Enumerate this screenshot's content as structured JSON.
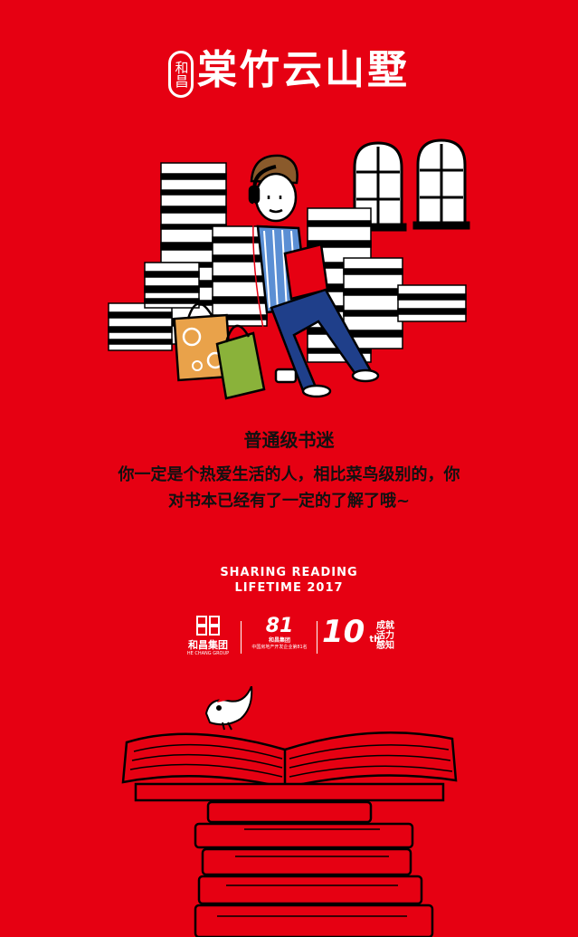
{
  "brand": {
    "seal_text": "和昌",
    "title": "棠竹云山墅"
  },
  "content": {
    "level_title": "普通级书迷",
    "description_line1": "你一定是个热爱生活的人，相比菜鸟级别的，你",
    "description_line2": "对书本已经有了一定的了解了哦~"
  },
  "slogan": {
    "line1": "SHARING READING",
    "line2": "LIFETIME 2017"
  },
  "footer_logos": {
    "group_name": "和昌集团",
    "group_name_en": "HE CHANG GROUP",
    "rank_number": "81",
    "rank_label_line1": "和昌集团",
    "rank_label_line2": "中国房地产开发企业第81名",
    "anniversary_number": "10",
    "anniversary_suffix": "th",
    "anniversary_slogan_1": "成就",
    "anniversary_slogan_2": "活力",
    "anniversary_slogan_3": "感知"
  },
  "colors": {
    "background": "#e60012",
    "text_dark": "#111111",
    "text_light": "#ffffff"
  }
}
